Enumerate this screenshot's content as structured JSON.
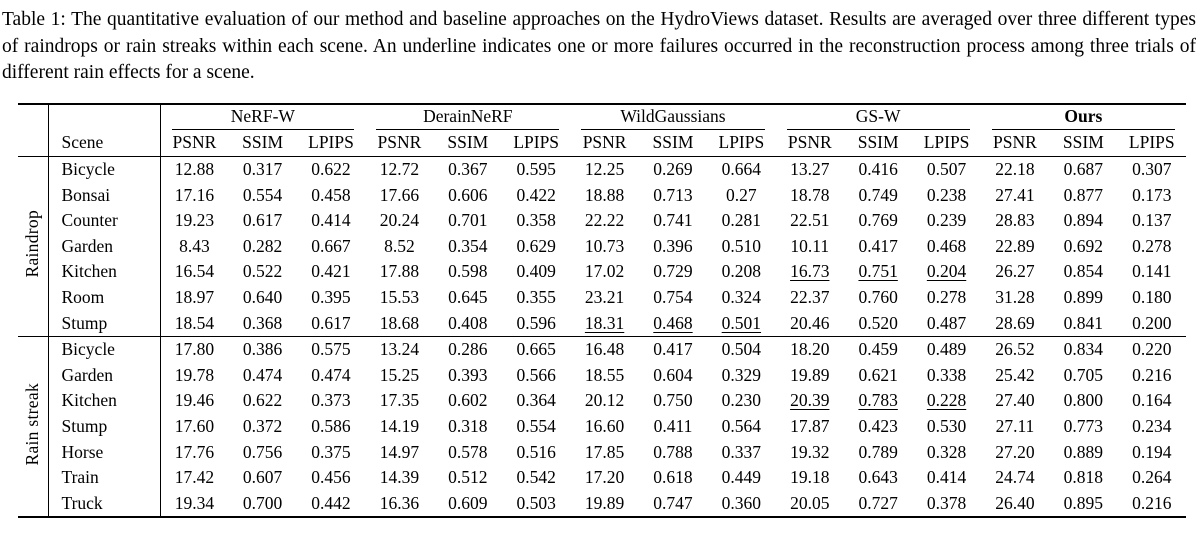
{
  "caption": {
    "text": "Table 1: The quantitative evaluation of our method and baseline approaches on the HydroViews dataset. Results are averaged over three different types of raindrops or rain streaks within each scene. An underline indicates one or more failures occurred in the reconstruction process among three trials of different rain effects for a scene."
  },
  "table": {
    "scene_header": "Scene",
    "metric_headers": [
      "PSNR",
      "SSIM",
      "LPIPS"
    ],
    "methods": [
      {
        "name": "NeRF-W",
        "bold": false
      },
      {
        "name": "DerainNeRF",
        "bold": false
      },
      {
        "name": "WildGaussians",
        "bold": false
      },
      {
        "name": "GS-W",
        "bold": false
      },
      {
        "name": "Ours",
        "bold": true
      }
    ],
    "groups": [
      {
        "label": "Raindrop",
        "rows": [
          {
            "scene": "Bicycle",
            "values": [
              "12.88",
              "0.317",
              "0.622",
              "12.72",
              "0.367",
              "0.595",
              "12.25",
              "0.269",
              "0.664",
              "13.27",
              "0.416",
              "0.507",
              "22.18",
              "0.687",
              "0.307"
            ]
          },
          {
            "scene": "Bonsai",
            "values": [
              "17.16",
              "0.554",
              "0.458",
              "17.66",
              "0.606",
              "0.422",
              "18.88",
              "0.713",
              "0.27",
              "18.78",
              "0.749",
              "0.238",
              "27.41",
              "0.877",
              "0.173"
            ]
          },
          {
            "scene": "Counter",
            "values": [
              "19.23",
              "0.617",
              "0.414",
              "20.24",
              "0.701",
              "0.358",
              "22.22",
              "0.741",
              "0.281",
              "22.51",
              "0.769",
              "0.239",
              "28.83",
              "0.894",
              "0.137"
            ]
          },
          {
            "scene": "Garden",
            "values": [
              "8.43",
              "0.282",
              "0.667",
              "8.52",
              "0.354",
              "0.629",
              "10.73",
              "0.396",
              "0.510",
              "10.11",
              "0.417",
              "0.468",
              "22.89",
              "0.692",
              "0.278"
            ]
          },
          {
            "scene": "Kitchen",
            "values": [
              "16.54",
              "0.522",
              "0.421",
              "17.88",
              "0.598",
              "0.409",
              "17.02",
              "0.729",
              "0.208",
              {
                "v": "16.73",
                "u": true
              },
              {
                "v": "0.751",
                "u": true
              },
              {
                "v": "0.204",
                "u": true
              },
              "26.27",
              "0.854",
              "0.141"
            ]
          },
          {
            "scene": "Room",
            "values": [
              "18.97",
              "0.640",
              "0.395",
              "15.53",
              "0.645",
              "0.355",
              "23.21",
              "0.754",
              "0.324",
              "22.37",
              "0.760",
              "0.278",
              "31.28",
              "0.899",
              "0.180"
            ]
          },
          {
            "scene": "Stump",
            "values": [
              "18.54",
              "0.368",
              "0.617",
              "18.68",
              "0.408",
              "0.596",
              {
                "v": "18.31",
                "u": true
              },
              {
                "v": "0.468",
                "u": true
              },
              {
                "v": "0.501",
                "u": true
              },
              "20.46",
              "0.520",
              "0.487",
              "28.69",
              "0.841",
              "0.200"
            ]
          }
        ]
      },
      {
        "label": "Rain streak",
        "rows": [
          {
            "scene": "Bicycle",
            "values": [
              "17.80",
              "0.386",
              "0.575",
              "13.24",
              "0.286",
              "0.665",
              "16.48",
              "0.417",
              "0.504",
              "18.20",
              "0.459",
              "0.489",
              "26.52",
              "0.834",
              "0.220"
            ]
          },
          {
            "scene": "Garden",
            "values": [
              "19.78",
              "0.474",
              "0.474",
              "15.25",
              "0.393",
              "0.566",
              "18.55",
              "0.604",
              "0.329",
              "19.89",
              "0.621",
              "0.338",
              "25.42",
              "0.705",
              "0.216"
            ]
          },
          {
            "scene": "Kitchen",
            "values": [
              "19.46",
              "0.622",
              "0.373",
              "17.35",
              "0.602",
              "0.364",
              "20.12",
              "0.750",
              "0.230",
              {
                "v": "20.39",
                "u": true
              },
              {
                "v": "0.783",
                "u": true
              },
              {
                "v": "0.228",
                "u": true
              },
              "27.40",
              "0.800",
              "0.164"
            ]
          },
          {
            "scene": "Stump",
            "values": [
              "17.60",
              "0.372",
              "0.586",
              "14.19",
              "0.318",
              "0.554",
              "16.60",
              "0.411",
              "0.564",
              "17.87",
              "0.423",
              "0.530",
              "27.11",
              "0.773",
              "0.234"
            ]
          },
          {
            "scene": "Horse",
            "values": [
              "17.76",
              "0.756",
              "0.375",
              "14.97",
              "0.578",
              "0.516",
              "17.85",
              "0.788",
              "0.337",
              "19.32",
              "0.789",
              "0.328",
              "27.20",
              "0.889",
              "0.194"
            ]
          },
          {
            "scene": "Train",
            "values": [
              "17.42",
              "0.607",
              "0.456",
              "14.39",
              "0.512",
              "0.542",
              "17.20",
              "0.618",
              "0.449",
              "19.18",
              "0.643",
              "0.414",
              "24.74",
              "0.818",
              "0.264"
            ]
          },
          {
            "scene": "Truck",
            "values": [
              "19.34",
              "0.700",
              "0.442",
              "16.36",
              "0.609",
              "0.503",
              "19.89",
              "0.747",
              "0.360",
              "20.05",
              "0.727",
              "0.378",
              "26.40",
              "0.895",
              "0.216"
            ]
          }
        ]
      }
    ]
  }
}
